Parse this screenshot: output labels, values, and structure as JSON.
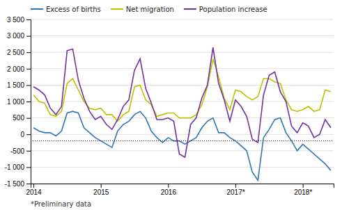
{
  "chart_data": {
    "type": "line",
    "categories": [
      "2014",
      null,
      null,
      null,
      null,
      null,
      null,
      null,
      null,
      null,
      null,
      null,
      "2015",
      null,
      null,
      null,
      null,
      null,
      null,
      null,
      null,
      null,
      null,
      null,
      "2016",
      null,
      null,
      null,
      null,
      null,
      null,
      null,
      null,
      null,
      null,
      null,
      "2017*",
      null,
      null,
      null,
      null,
      null,
      null,
      null,
      null,
      null,
      null,
      null,
      "2018*",
      null,
      null,
      null,
      null,
      null
    ],
    "series": [
      {
        "name": "Excess of births",
        "color": "#2e75b6",
        "values": [
          200,
          100,
          50,
          50,
          -50,
          100,
          650,
          700,
          650,
          200,
          50,
          -100,
          -200,
          -300,
          -400,
          100,
          300,
          400,
          600,
          700,
          500,
          100,
          -100,
          -250,
          -100,
          -200,
          -200,
          -300,
          -200,
          -100,
          200,
          400,
          500,
          50,
          50,
          -100,
          -200,
          -350,
          -500,
          -1150,
          -1400,
          -100,
          150,
          450,
          500,
          50,
          -200,
          -500,
          -300,
          -450,
          -600,
          -750,
          -900,
          -1100
        ]
      },
      {
        "name": "Net migration",
        "color": "#bfc000",
        "values": [
          1200,
          1000,
          950,
          600,
          550,
          700,
          1550,
          1700,
          1350,
          1000,
          800,
          750,
          800,
          600,
          600,
          400,
          600,
          700,
          1450,
          1500,
          1050,
          900,
          550,
          600,
          650,
          650,
          500,
          500,
          500,
          600,
          900,
          1450,
          2300,
          1750,
          1100,
          750,
          1350,
          1300,
          1150,
          1050,
          1150,
          1700,
          1700,
          1600,
          1550,
          1050,
          750,
          700,
          750,
          850,
          700,
          750,
          1350,
          1300
        ]
      },
      {
        "name": "Population increase",
        "color": "#7030a0",
        "values": [
          1450,
          1350,
          1200,
          800,
          600,
          850,
          2550,
          2600,
          1650,
          1100,
          700,
          450,
          550,
          300,
          150,
          450,
          850,
          1050,
          1950,
          2300,
          1400,
          950,
          450,
          450,
          500,
          400,
          -600,
          -700,
          300,
          500,
          1100,
          1500,
          2650,
          1550,
          1050,
          400,
          1050,
          850,
          550,
          -150,
          -250,
          1200,
          1800,
          1900,
          1300,
          1000,
          250,
          50,
          350,
          250,
          -100,
          0,
          450,
          200
        ]
      }
    ],
    "ylim": [
      -1500,
      3500
    ],
    "yticks": [
      {
        "value": -1500,
        "label": "-1 500"
      },
      {
        "value": -1000,
        "label": "-1 000"
      },
      -500,
      0,
      500,
      {
        "value": 1000,
        "label": "1 000"
      },
      {
        "value": 1500,
        "label": "1 500"
      },
      {
        "value": 2000,
        "label": "2 000"
      },
      {
        "value": 2500,
        "label": "2 500"
      },
      {
        "value": 3000,
        "label": "3 000"
      },
      {
        "value": 3500,
        "label": "3 500"
      }
    ],
    "hline": {
      "value": -200,
      "color": "#000000",
      "line_style": "dotted"
    },
    "grid": true,
    "legend": "top-left",
    "footnote": "*Preliminary data"
  }
}
